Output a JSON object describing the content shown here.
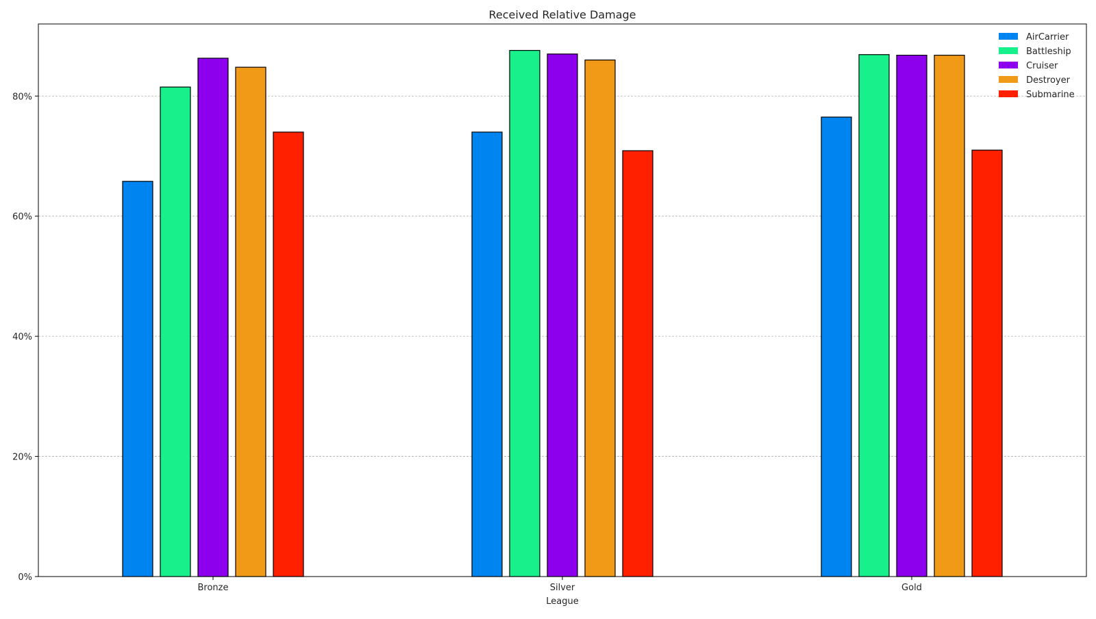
{
  "chart_data": {
    "type": "bar",
    "title": "Received Relative Damage",
    "xlabel": "League",
    "ylabel": "",
    "categories": [
      "Bronze",
      "Silver",
      "Gold"
    ],
    "series": [
      {
        "name": "AirCarrier",
        "color": "#0084f0",
        "values": [
          65.8,
          74.0,
          76.5
        ]
      },
      {
        "name": "Battleship",
        "color": "#18f08b",
        "values": [
          81.5,
          87.6,
          86.9
        ]
      },
      {
        "name": "Cruiser",
        "color": "#8c00ee",
        "values": [
          86.3,
          87.0,
          86.8
        ]
      },
      {
        "name": "Destroyer",
        "color": "#f09a18",
        "values": [
          84.8,
          86.0,
          86.8
        ]
      },
      {
        "name": "Submarine",
        "color": "#ff2000",
        "values": [
          74.0,
          70.9,
          71.0
        ]
      }
    ],
    "ylim": [
      0,
      92
    ],
    "yticks": [
      0,
      20,
      40,
      60,
      80
    ],
    "ytick_labels": [
      "0%",
      "20%",
      "40%",
      "60%",
      "80%"
    ],
    "grid": "y-dashed",
    "legend_position": "top-right"
  }
}
